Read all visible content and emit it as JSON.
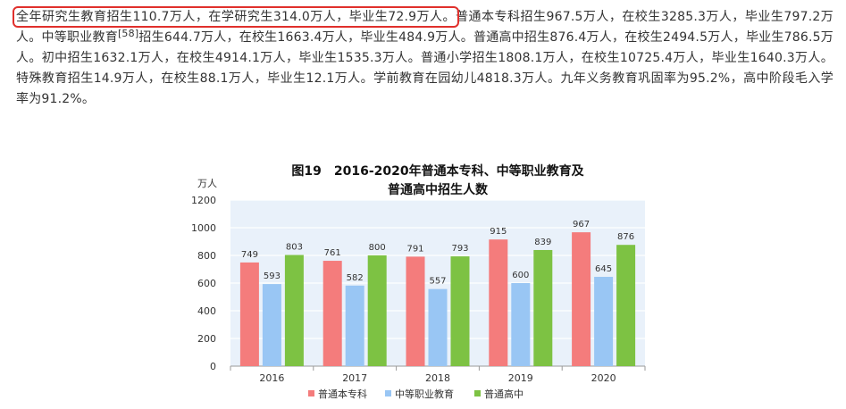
{
  "article": {
    "highlight": "全年研究生教育招生110.7万人，在学研究生314.0万人，毕业生72.9万人。",
    "text_a": "普通本专科招生967.5万人，在校生3285.3万人，毕业生797.2万人。中等职业教育",
    "footnote": "[58]",
    "text_b": "招生644.7万人，在校生1663.4万人，毕业生484.9万人。普通高中招生876.4万人，在校生2494.5万人，毕业生786.5万人。初中招生1632.1万人，在校生4914.1万人，毕业生1535.3万人。普通小学招生1808.1万人，在校生10725.4万人，毕业生1640.3万人。特殊教育招生14.9万人，在校生88.1万人，毕业生12.1万人。学前教育在园幼儿4818.3万人。九年义务教育巩固率为95.2%，高中阶段毛入学率为91.2%。",
    "highlight_color": "#e0302c"
  },
  "chart_data": {
    "type": "bar",
    "title_line1": "图19　2016-2020年普通本专科、中等职业教育及",
    "title_line2": "普通高中招生人数",
    "ylabel": "万人",
    "ylim": [
      0,
      1200
    ],
    "yticks": [
      "0",
      "200",
      "400",
      "600",
      "800",
      "1000",
      "1200"
    ],
    "categories": [
      "2016",
      "2017",
      "2018",
      "2019",
      "2020"
    ],
    "series": [
      {
        "name": "普通本专科",
        "values": [
          749,
          761,
          791,
          915,
          967
        ],
        "labels": [
          "749",
          "761",
          "791",
          "915",
          "967"
        ],
        "color": "#f47c7c"
      },
      {
        "name": "中等职业教育",
        "values": [
          593,
          582,
          557,
          600,
          645
        ],
        "labels": [
          "593",
          "582",
          "557",
          "600",
          "645"
        ],
        "color": "#99c6f4"
      },
      {
        "name": "普通高中",
        "values": [
          803,
          800,
          793,
          839,
          876
        ],
        "labels": [
          "803",
          "800",
          "793",
          "839",
          "876"
        ],
        "color": "#7dc243"
      }
    ],
    "grid": true,
    "legend_position": "bottom",
    "plot_background": "#e9f1fa"
  }
}
